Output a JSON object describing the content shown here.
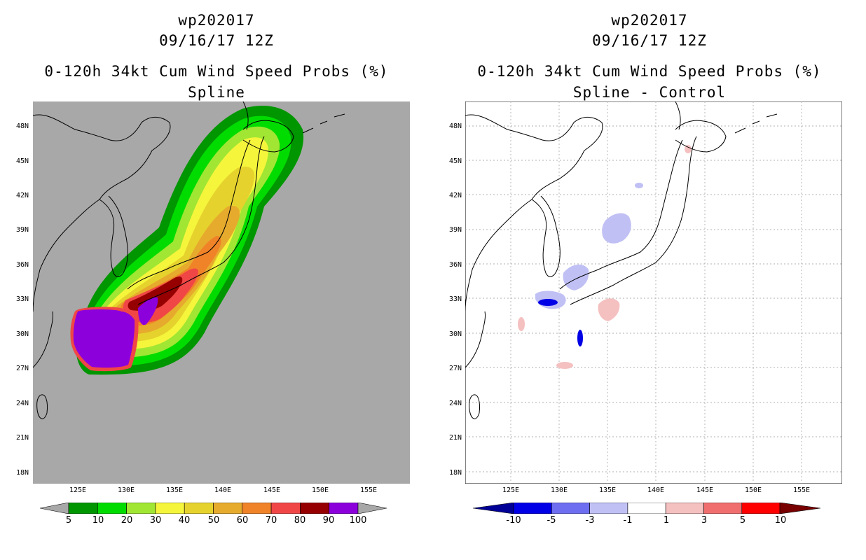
{
  "left_panel": {
    "title_line1": "wp202017",
    "title_line2": "09/16/17 12Z",
    "title_line3": "0-120h 34kt Cum Wind Speed Probs (%)",
    "title_line4": "Spline",
    "background_color": "#a8a8a8",
    "colorbar": {
      "labels": [
        "5",
        "10",
        "20",
        "30",
        "40",
        "50",
        "60",
        "70",
        "80",
        "90",
        "100"
      ],
      "colors": [
        "#009600",
        "#00dc00",
        "#a0e632",
        "#f5f53c",
        "#e6d22d",
        "#e6aa2d",
        "#f08228",
        "#f04646",
        "#960000",
        "#8c00dc"
      ]
    }
  },
  "right_panel": {
    "title_line1": "wp202017",
    "title_line2": "09/16/17 12Z",
    "title_line3": "0-120h 34kt Cum Wind Speed Probs (%)",
    "title_line4": "Spline - Control",
    "colorbar": {
      "labels": [
        "-10",
        "-5",
        "-3",
        "-1",
        "1",
        "3",
        "5",
        "10"
      ],
      "colors": [
        "#0000e6",
        "#6e6ef0",
        "#c0c0f5",
        "#ffffff",
        "#f5c0c0",
        "#f06e6e",
        "#ff0000"
      ]
    }
  },
  "axes": {
    "lat_labels": [
      "48N",
      "45N",
      "42N",
      "39N",
      "36N",
      "33N",
      "30N",
      "27N",
      "24N",
      "21N",
      "18N"
    ],
    "lon_labels": [
      "125E",
      "130E",
      "135E",
      "140E",
      "145E",
      "150E",
      "155E"
    ]
  }
}
